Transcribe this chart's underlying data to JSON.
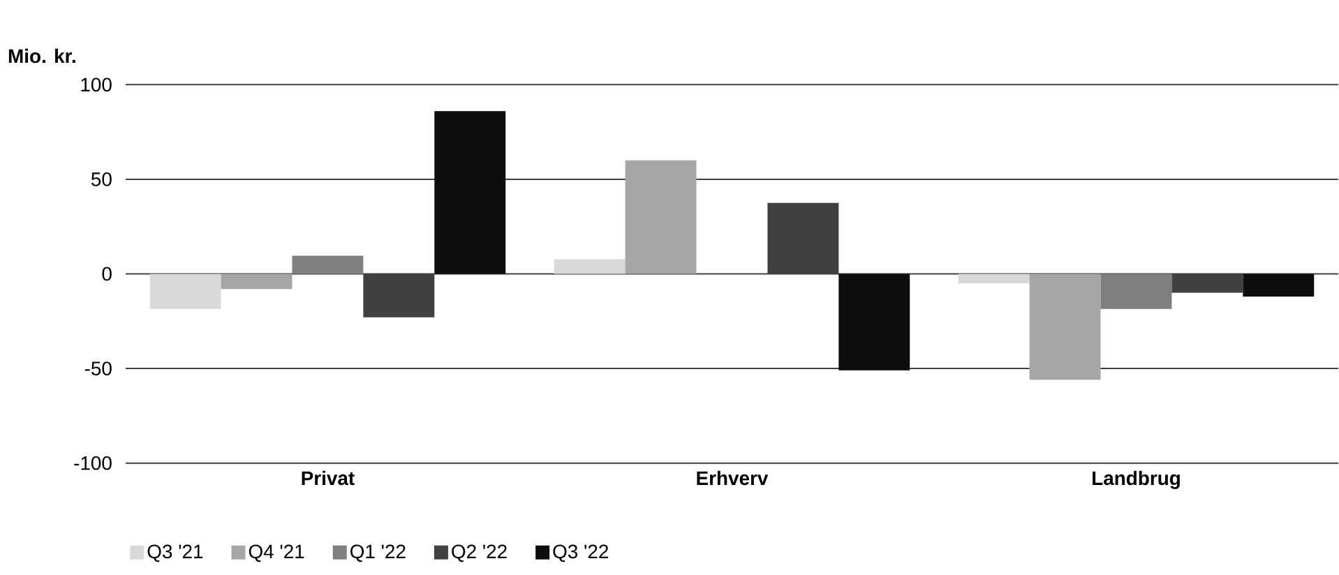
{
  "chart_data": {
    "type": "bar",
    "ylabel": "Mio. kr.",
    "categories": [
      "Privat",
      "Erhverv",
      "Landbrug"
    ],
    "series": [
      {
        "name": "Q3 '21",
        "color": "#d9d9d9",
        "values": [
          -18.5,
          7.7,
          -5
        ]
      },
      {
        "name": "Q4 '21",
        "color": "#a6a6a6",
        "values": [
          -8,
          60,
          -56
        ]
      },
      {
        "name": "Q1 '22",
        "color": "#7f7f7f",
        "values": [
          9.6,
          0,
          -18.5
        ]
      },
      {
        "name": "Q2 '22",
        "color": "#404040",
        "values": [
          -23,
          37.5,
          -10
        ]
      },
      {
        "name": "Q3 '22",
        "color": "#0d0d0d",
        "values": [
          86,
          -51,
          -12
        ]
      }
    ],
    "ylim": [
      -100,
      100
    ],
    "yticks": [
      -100,
      -50,
      0,
      50,
      100
    ],
    "grid": "y",
    "legend": "bottom"
  }
}
